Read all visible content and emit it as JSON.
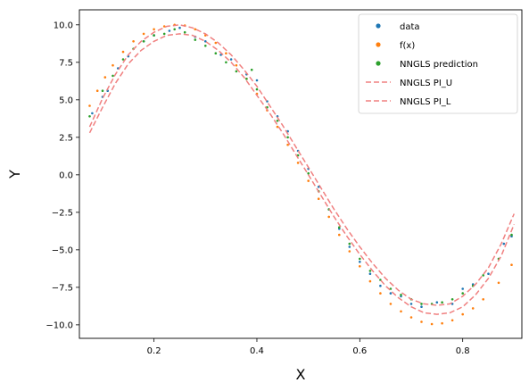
{
  "chart_data": {
    "type": "scatter",
    "xlabel": "X",
    "ylabel": "Y",
    "xlim": [
      0.055,
      0.915
    ],
    "ylim": [
      -10.9,
      11.0
    ],
    "xticks": [
      0.2,
      0.4,
      0.6,
      0.8
    ],
    "yticks": [
      -10.0,
      -7.5,
      -5.0,
      -2.5,
      0.0,
      2.5,
      5.0,
      7.5,
      10.0
    ],
    "xtick_labels": [
      "0.2",
      "0.4",
      "0.6",
      "0.8"
    ],
    "ytick_labels": [
      "−10.0",
      "−7.5",
      "−5.0",
      "−2.5",
      "0.0",
      "2.5",
      "5.0",
      "7.5",
      "10.0"
    ],
    "grid": false,
    "legend_position": "upper-right",
    "series": [
      {
        "name": "data",
        "kind": "scatter",
        "color": "#1f77b4",
        "points": [
          [
            0.08,
            4.1
          ],
          [
            0.1,
            5.2
          ],
          [
            0.11,
            5.6
          ],
          [
            0.13,
            7.1
          ],
          [
            0.15,
            7.9
          ],
          [
            0.18,
            8.9
          ],
          [
            0.2,
            9.3
          ],
          [
            0.23,
            9.6
          ],
          [
            0.25,
            9.8
          ],
          [
            0.28,
            9.2
          ],
          [
            0.3,
            8.9
          ],
          [
            0.33,
            8.0
          ],
          [
            0.35,
            7.7
          ],
          [
            0.38,
            6.7
          ],
          [
            0.4,
            6.3
          ],
          [
            0.42,
            4.9
          ],
          [
            0.44,
            3.9
          ],
          [
            0.46,
            2.9
          ],
          [
            0.48,
            1.6
          ],
          [
            0.5,
            0.4
          ],
          [
            0.52,
            -0.8
          ],
          [
            0.54,
            -2.3
          ],
          [
            0.56,
            -3.6
          ],
          [
            0.58,
            -4.8
          ],
          [
            0.6,
            -5.8
          ],
          [
            0.62,
            -6.6
          ],
          [
            0.64,
            -7.4
          ],
          [
            0.66,
            -7.9
          ],
          [
            0.68,
            -8.1
          ],
          [
            0.7,
            -8.6
          ],
          [
            0.72,
            -8.8
          ],
          [
            0.75,
            -8.5
          ],
          [
            0.78,
            -8.6
          ],
          [
            0.8,
            -7.6
          ],
          [
            0.82,
            -7.3
          ],
          [
            0.85,
            -6.6
          ],
          [
            0.88,
            -4.6
          ],
          [
            0.895,
            -4.1
          ]
        ]
      },
      {
        "name": "f(x)",
        "kind": "scatter",
        "color": "#ff7f0e",
        "points": [
          [
            0.075,
            4.6
          ],
          [
            0.09,
            5.6
          ],
          [
            0.105,
            6.5
          ],
          [
            0.12,
            7.3
          ],
          [
            0.14,
            8.2
          ],
          [
            0.16,
            8.9
          ],
          [
            0.18,
            9.4
          ],
          [
            0.2,
            9.7
          ],
          [
            0.22,
            9.9
          ],
          [
            0.24,
            10.0
          ],
          [
            0.26,
            9.95
          ],
          [
            0.28,
            9.7
          ],
          [
            0.3,
            9.3
          ],
          [
            0.32,
            8.8
          ],
          [
            0.34,
            8.1
          ],
          [
            0.36,
            7.3
          ],
          [
            0.38,
            6.4
          ],
          [
            0.4,
            5.4
          ],
          [
            0.42,
            4.3
          ],
          [
            0.44,
            3.2
          ],
          [
            0.46,
            2.0
          ],
          [
            0.48,
            0.8
          ],
          [
            0.5,
            -0.4
          ],
          [
            0.52,
            -1.6
          ],
          [
            0.54,
            -2.8
          ],
          [
            0.56,
            -4.0
          ],
          [
            0.58,
            -5.1
          ],
          [
            0.6,
            -6.1
          ],
          [
            0.62,
            -7.1
          ],
          [
            0.64,
            -7.9
          ],
          [
            0.66,
            -8.6
          ],
          [
            0.68,
            -9.1
          ],
          [
            0.7,
            -9.5
          ],
          [
            0.72,
            -9.8
          ],
          [
            0.74,
            -9.95
          ],
          [
            0.76,
            -9.9
          ],
          [
            0.78,
            -9.7
          ],
          [
            0.8,
            -9.3
          ],
          [
            0.82,
            -8.9
          ],
          [
            0.84,
            -8.3
          ],
          [
            0.87,
            -7.2
          ],
          [
            0.895,
            -6.0
          ]
        ]
      },
      {
        "name": "NNGLS prediction",
        "kind": "scatter",
        "color": "#2ca02c",
        "points": [
          [
            0.075,
            3.9
          ],
          [
            0.1,
            5.6
          ],
          [
            0.12,
            6.6
          ],
          [
            0.14,
            7.7
          ],
          [
            0.16,
            8.4
          ],
          [
            0.18,
            8.9
          ],
          [
            0.2,
            9.3
          ],
          [
            0.22,
            9.4
          ],
          [
            0.24,
            9.7
          ],
          [
            0.26,
            9.5
          ],
          [
            0.28,
            9.0
          ],
          [
            0.3,
            8.6
          ],
          [
            0.32,
            8.1
          ],
          [
            0.34,
            7.5
          ],
          [
            0.36,
            6.9
          ],
          [
            0.38,
            6.4
          ],
          [
            0.39,
            7.0
          ],
          [
            0.4,
            5.7
          ],
          [
            0.42,
            4.5
          ],
          [
            0.44,
            3.6
          ],
          [
            0.46,
            2.5
          ],
          [
            0.48,
            1.3
          ],
          [
            0.5,
            0.1
          ],
          [
            0.52,
            -1.1
          ],
          [
            0.54,
            -2.3
          ],
          [
            0.56,
            -3.5
          ],
          [
            0.58,
            -4.6
          ],
          [
            0.6,
            -5.6
          ],
          [
            0.62,
            -6.4
          ],
          [
            0.64,
            -7.0
          ],
          [
            0.66,
            -7.6
          ],
          [
            0.68,
            -8.0
          ],
          [
            0.7,
            -8.3
          ],
          [
            0.72,
            -8.6
          ],
          [
            0.74,
            -8.6
          ],
          [
            0.76,
            -8.5
          ],
          [
            0.78,
            -8.3
          ],
          [
            0.8,
            -7.9
          ],
          [
            0.82,
            -7.4
          ],
          [
            0.84,
            -6.7
          ],
          [
            0.87,
            -5.6
          ],
          [
            0.895,
            -4.0
          ]
        ]
      },
      {
        "name": "NNGLS PI_U",
        "kind": "line",
        "color": "#f08080",
        "dash": true,
        "points": [
          [
            0.075,
            3.2
          ],
          [
            0.1,
            5.1
          ],
          [
            0.125,
            6.7
          ],
          [
            0.15,
            8.0
          ],
          [
            0.175,
            8.9
          ],
          [
            0.2,
            9.5
          ],
          [
            0.225,
            9.9
          ],
          [
            0.25,
            10.0
          ],
          [
            0.275,
            9.8
          ],
          [
            0.3,
            9.4
          ],
          [
            0.325,
            8.8
          ],
          [
            0.35,
            8.0
          ],
          [
            0.375,
            7.0
          ],
          [
            0.4,
            5.9
          ],
          [
            0.425,
            4.6
          ],
          [
            0.45,
            3.3
          ],
          [
            0.475,
            1.9
          ],
          [
            0.5,
            0.5
          ],
          [
            0.525,
            -0.9
          ],
          [
            0.55,
            -2.3
          ],
          [
            0.575,
            -3.6
          ],
          [
            0.6,
            -4.8
          ],
          [
            0.625,
            -5.9
          ],
          [
            0.65,
            -6.9
          ],
          [
            0.675,
            -7.7
          ],
          [
            0.7,
            -8.3
          ],
          [
            0.725,
            -8.6
          ],
          [
            0.75,
            -8.7
          ],
          [
            0.775,
            -8.6
          ],
          [
            0.8,
            -8.1
          ],
          [
            0.825,
            -7.3
          ],
          [
            0.85,
            -6.2
          ],
          [
            0.875,
            -4.6
          ],
          [
            0.9,
            -2.6
          ]
        ]
      },
      {
        "name": "NNGLS PI_L",
        "kind": "line",
        "color": "#f08080",
        "dash": true,
        "points": [
          [
            0.075,
            2.8
          ],
          [
            0.1,
            4.5
          ],
          [
            0.125,
            6.1
          ],
          [
            0.15,
            7.4
          ],
          [
            0.175,
            8.3
          ],
          [
            0.2,
            8.9
          ],
          [
            0.225,
            9.3
          ],
          [
            0.25,
            9.4
          ],
          [
            0.275,
            9.3
          ],
          [
            0.3,
            8.9
          ],
          [
            0.325,
            8.3
          ],
          [
            0.35,
            7.5
          ],
          [
            0.375,
            6.5
          ],
          [
            0.4,
            5.3
          ],
          [
            0.425,
            4.1
          ],
          [
            0.45,
            2.8
          ],
          [
            0.475,
            1.4
          ],
          [
            0.5,
            0.0
          ],
          [
            0.525,
            -1.4
          ],
          [
            0.55,
            -2.8
          ],
          [
            0.575,
            -4.1
          ],
          [
            0.6,
            -5.3
          ],
          [
            0.625,
            -6.4
          ],
          [
            0.65,
            -7.4
          ],
          [
            0.675,
            -8.2
          ],
          [
            0.7,
            -8.8
          ],
          [
            0.725,
            -9.2
          ],
          [
            0.75,
            -9.3
          ],
          [
            0.775,
            -9.2
          ],
          [
            0.8,
            -8.8
          ],
          [
            0.825,
            -8.0
          ],
          [
            0.85,
            -6.9
          ],
          [
            0.875,
            -5.4
          ],
          [
            0.9,
            -3.3
          ]
        ]
      }
    ]
  }
}
